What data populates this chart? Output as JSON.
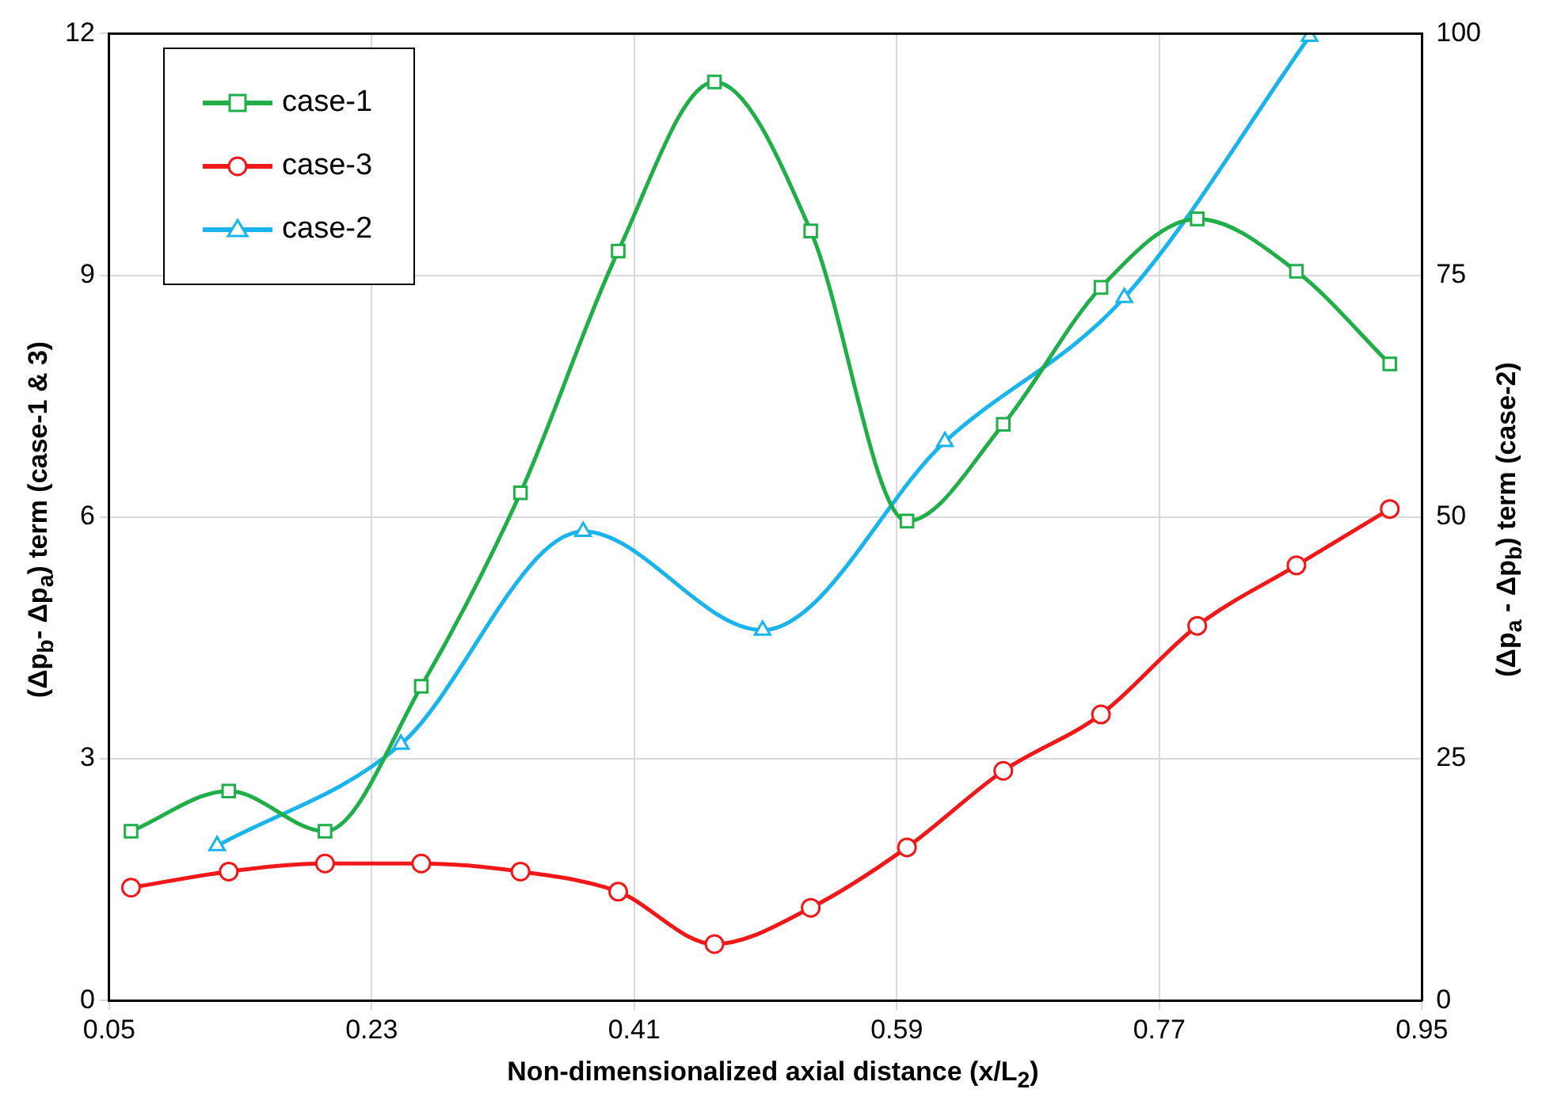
{
  "chart_data": {
    "type": "line",
    "xlabel": "Non-dimensionalized axial distance (x/L$_{2}$)",
    "ylabel": "(Δp$_{b}$- Δp$_{a}$) term  (case-1 & 3)",
    "y2label": "(Δp$_{a}$ - Δp$_{b}$) term  (case-2)",
    "xlim": [
      0.05,
      0.95
    ],
    "xticks": [
      0.05,
      0.23,
      0.41,
      0.59,
      0.77,
      0.95
    ],
    "ylim": [
      0,
      12
    ],
    "yticks": [
      0,
      3,
      6,
      9,
      12
    ],
    "y2lim": [
      0,
      100
    ],
    "y2ticks": [
      0,
      25,
      50,
      75,
      100
    ],
    "grid": true,
    "legend": "top left",
    "series": [
      {
        "name": "case-1",
        "color": "#1fae48",
        "marker": "square",
        "x": [
          0.065,
          0.132,
          0.198,
          0.264,
          0.332,
          0.399,
          0.465,
          0.531,
          0.597,
          0.663,
          0.73,
          0.796,
          0.864,
          0.928
        ],
        "values": [
          2.1,
          2.6,
          2.1,
          3.9,
          6.3,
          9.3,
          11.4,
          9.55,
          5.95,
          7.15,
          8.85,
          9.7,
          9.05,
          7.9
        ]
      },
      {
        "name": "case-3",
        "color": "#f01818",
        "marker": "circle",
        "x": [
          0.065,
          0.132,
          0.198,
          0.264,
          0.332,
          0.399,
          0.465,
          0.531,
          0.597,
          0.663,
          0.73,
          0.796,
          0.864,
          0.928
        ],
        "values": [
          1.4,
          1.6,
          1.7,
          1.7,
          1.6,
          1.35,
          0.7,
          1.15,
          1.9,
          2.85,
          3.55,
          4.65,
          5.4,
          6.1
        ]
      },
      {
        "name": "case-2",
        "color": "#1ab4ec",
        "marker": "triangle",
        "axis": "y2",
        "x": [
          0.124,
          0.25,
          0.375,
          0.498,
          0.623,
          0.746,
          0.873
        ],
        "values": [
          16,
          26.5,
          48.5,
          38.3,
          57.8,
          72.7,
          99.7
        ]
      }
    ]
  }
}
